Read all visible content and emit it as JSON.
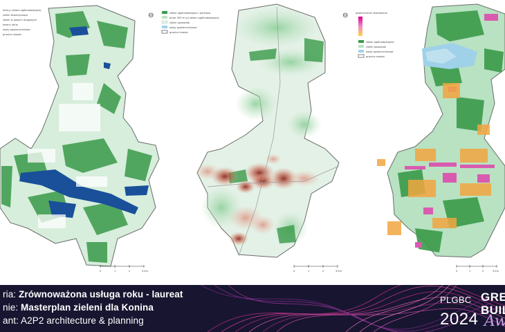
{
  "maps": [
    {
      "legend": [
        "tereny zieleni ogólnodostępnej",
        "zieleń towarzysząca",
        "zieleń w pasach drogowych",
        "tereny rolne",
        "wody powierzchniowe",
        "granica miasta"
      ],
      "scale": {
        "ticks": [
          "0",
          "1",
          "2",
          "3 km"
        ]
      }
    },
    {
      "legend": [
        "zieleń ogólnodostępna i parkowa",
        "bufor 300 m od zieleni ogólnodostępnej",
        "zieleń pozostała",
        "wody powierzchniowe",
        "granica miasta"
      ],
      "scale": {
        "ticks": [
          "0",
          "1",
          "2",
          "3 km"
        ]
      }
    },
    {
      "legend": [
        "powierzchnie utwardzone",
        "zieleń ogólnodostępna",
        "zieleń pozostała",
        "wody powierzchniowe",
        "granica miasta"
      ],
      "scale": {
        "ticks": [
          "0",
          "1",
          "2",
          "3 km"
        ]
      }
    }
  ],
  "caption": {
    "line1_prefix": "ria: ",
    "line1_value": "Zrównoważona usługa roku - laureat",
    "line2_prefix": "nie: ",
    "line2_value": "Masterplan zieleni dla Konina",
    "line3_prefix": "ant: ",
    "line3_value": "A2P2 architecture & planning"
  },
  "brand": {
    "org": "PLGBC",
    "line_a": "GREE",
    "line_b": "BUIL",
    "year": "2024",
    "script": "Awa"
  },
  "colors": {
    "band": "#181530",
    "green_dark": "#3a9a4a",
    "green_light": "#bfe3c4",
    "water": "#1a4f9a",
    "hardscape": "#d95bb0",
    "heat": "#9a3a2a"
  }
}
